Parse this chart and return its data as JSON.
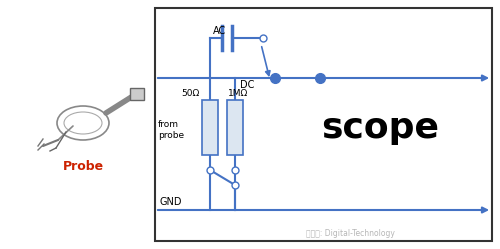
{
  "background_color": "#ffffff",
  "border_color": "#333333",
  "line_color": "#4472c4",
  "text_color": "#000000",
  "probe_label": "Probe",
  "probe_label_color": "#cc2200",
  "scope_label": "scope",
  "watermark": "微信号: Digital-Technology",
  "ac_label": "AC",
  "dc_label": "DC",
  "r50_label": "50Ω",
  "r1m_label": "1MΩ",
  "from_probe_label": "from\nprobe",
  "gnd_label": "GND",
  "figw": 5.0,
  "figh": 2.49,
  "dpi": 100
}
